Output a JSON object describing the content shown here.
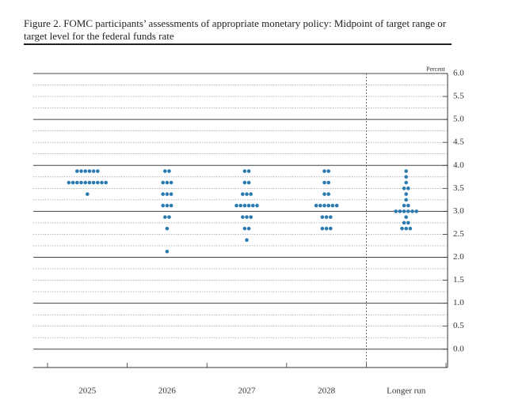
{
  "chart_data": {
    "type": "dot_plot",
    "title": "Figure 2. FOMC participants’ assessments of appropriate monetary policy: Midpoint of target range or target level for the federal funds rate",
    "y_label": "Percent",
    "color": "#2b7bb0",
    "categories": [
      "2025",
      "2026",
      "2027",
      "2028",
      "Longer run"
    ],
    "dots": [
      [
        {
          "value": 3.875,
          "count": 6
        },
        {
          "value": 3.625,
          "count": 10
        },
        {
          "value": 3.375,
          "count": 1
        }
      ],
      [
        {
          "value": 3.875,
          "count": 2
        },
        {
          "value": 3.625,
          "count": 3
        },
        {
          "value": 3.375,
          "count": 3
        },
        {
          "value": 3.125,
          "count": 3
        },
        {
          "value": 2.875,
          "count": 2
        },
        {
          "value": 2.625,
          "count": 1
        },
        {
          "value": 2.125,
          "count": 1
        }
      ],
      [
        {
          "value": 3.875,
          "count": 2
        },
        {
          "value": 3.625,
          "count": 2
        },
        {
          "value": 3.375,
          "count": 3
        },
        {
          "value": 3.125,
          "count": 6
        },
        {
          "value": 2.875,
          "count": 3
        },
        {
          "value": 2.625,
          "count": 2
        },
        {
          "value": 2.375,
          "count": 1
        }
      ],
      [
        {
          "value": 3.875,
          "count": 2
        },
        {
          "value": 3.625,
          "count": 2
        },
        {
          "value": 3.375,
          "count": 2
        },
        {
          "value": 3.125,
          "count": 6
        },
        {
          "value": 2.875,
          "count": 3
        },
        {
          "value": 2.625,
          "count": 3
        }
      ],
      [
        {
          "value": 3.875,
          "count": 1
        },
        {
          "value": 3.75,
          "count": 1
        },
        {
          "value": 3.625,
          "count": 1
        },
        {
          "value": 3.5,
          "count": 2
        },
        {
          "value": 3.375,
          "count": 1
        },
        {
          "value": 3.25,
          "count": 1
        },
        {
          "value": 3.125,
          "count": 2
        },
        {
          "value": 3.0,
          "count": 6
        },
        {
          "value": 2.875,
          "count": 1
        },
        {
          "value": 2.75,
          "count": 2
        },
        {
          "value": 2.625,
          "count": 3
        }
      ]
    ],
    "ylim": [
      -0.4,
      6.0
    ],
    "yticks": [
      {
        "value": 0,
        "label": "0.0"
      },
      0.5,
      {
        "value": 1,
        "label": "1.0"
      },
      1.5,
      {
        "value": 2,
        "label": "2.0"
      },
      2.5,
      {
        "value": 3,
        "label": "3.0"
      },
      3.5,
      {
        "value": 4,
        "label": "4.0"
      },
      4.5,
      {
        "value": 5,
        "label": "5.0"
      },
      5.5,
      {
        "value": 6,
        "label": "6.0"
      }
    ],
    "minor_yticks": [
      0.25,
      0.75,
      1.25,
      1.75,
      2.25,
      2.75,
      3.25,
      3.75,
      4.25,
      4.75,
      5.25,
      5.75
    ],
    "separator_before_last": true
  }
}
